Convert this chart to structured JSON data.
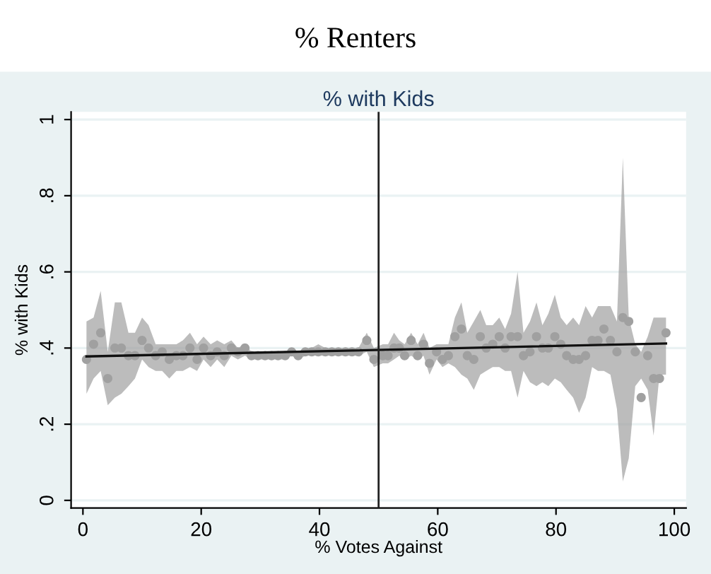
{
  "chart_data": {
    "type": "scatter",
    "title": "% Renters",
    "subtitle": "% with Kids",
    "xlabel": "% Votes Against",
    "ylabel": "% with Kids",
    "xlim": [
      -2,
      102
    ],
    "ylim": [
      -0.02,
      1.02
    ],
    "xticks": [
      0,
      20,
      40,
      60,
      80,
      100
    ],
    "yticks": [
      {
        "value": 0,
        "label": "0"
      },
      {
        "value": 0.2,
        "label": ".2"
      },
      {
        "value": 0.4,
        "label": ".4"
      },
      {
        "value": 0.6,
        "label": ".6"
      },
      {
        "value": 0.8,
        "label": ".8"
      },
      {
        "value": 1,
        "label": "1"
      }
    ],
    "grid": "y",
    "legend": false,
    "ref_lines": [
      {
        "axis": "x",
        "value": 50,
        "color": "#222222"
      }
    ],
    "series": [
      {
        "marker": "circle",
        "color": "#a0a0a0",
        "x": [
          0.6,
          1.8,
          3.0,
          4.2,
          5.4,
          6.5,
          7.7,
          8.8,
          10.0,
          11.1,
          12.3,
          13.4,
          14.6,
          15.8,
          16.9,
          18.1,
          19.3,
          20.4,
          21.6,
          22.7,
          23.9,
          25.1,
          26.2,
          27.4,
          28.5,
          29.6,
          30.8,
          31.9,
          33.0,
          34.2,
          35.3,
          36.4,
          37.6,
          38.7,
          39.8,
          41.0,
          42.1,
          43.2,
          44.4,
          45.5,
          46.6,
          48.0,
          49.2,
          50.7,
          51.6,
          52.6,
          53.5,
          54.4,
          55.5,
          56.6,
          57.6,
          58.6,
          59.8,
          60.8,
          61.8,
          62.9,
          64.0,
          65.0,
          66.1,
          67.2,
          68.2,
          69.3,
          70.4,
          71.4,
          72.4,
          73.5,
          74.5,
          75.6,
          76.7,
          77.7,
          78.7,
          79.8,
          80.8,
          81.8,
          82.9,
          83.9,
          85.0,
          86.1,
          87.1,
          88.1,
          89.2,
          90.3,
          91.3,
          92.3,
          93.4,
          94.4,
          95.5,
          96.5,
          97.5,
          98.6
        ],
        "values": [
          0.37,
          0.41,
          0.44,
          0.32,
          0.4,
          0.4,
          0.38,
          0.38,
          0.42,
          0.4,
          0.38,
          0.39,
          0.37,
          0.38,
          0.38,
          0.4,
          0.37,
          0.4,
          0.38,
          0.39,
          0.38,
          0.4,
          0.39,
          0.4,
          0.38,
          0.38,
          0.38,
          0.38,
          0.38,
          0.38,
          0.39,
          0.38,
          0.39,
          0.39,
          0.39,
          0.39,
          0.39,
          0.39,
          0.39,
          0.39,
          0.39,
          0.42,
          0.37,
          0.38,
          0.38,
          0.4,
          0.4,
          0.38,
          0.42,
          0.38,
          0.41,
          0.36,
          0.39,
          0.37,
          0.38,
          0.43,
          0.45,
          0.38,
          0.37,
          0.43,
          0.4,
          0.41,
          0.43,
          0.4,
          0.43,
          0.43,
          0.38,
          0.39,
          0.43,
          0.4,
          0.4,
          0.43,
          0.41,
          0.38,
          0.37,
          0.37,
          0.38,
          0.42,
          0.42,
          0.45,
          0.42,
          0.39,
          0.48,
          0.47,
          0.39,
          0.27,
          0.38,
          0.32,
          0.32,
          0.44
        ],
        "upper": [
          0.47,
          0.48,
          0.55,
          0.39,
          0.52,
          0.52,
          0.44,
          0.44,
          0.48,
          0.46,
          0.41,
          0.41,
          0.41,
          0.41,
          0.42,
          0.44,
          0.41,
          0.43,
          0.41,
          0.42,
          0.41,
          0.42,
          0.4,
          0.41,
          0.39,
          0.39,
          0.39,
          0.39,
          0.39,
          0.39,
          0.4,
          0.39,
          0.4,
          0.4,
          0.41,
          0.4,
          0.4,
          0.4,
          0.4,
          0.4,
          0.4,
          0.44,
          0.4,
          0.41,
          0.41,
          0.44,
          0.42,
          0.41,
          0.44,
          0.41,
          0.44,
          0.4,
          0.41,
          0.41,
          0.41,
          0.48,
          0.52,
          0.44,
          0.47,
          0.5,
          0.46,
          0.46,
          0.48,
          0.45,
          0.49,
          0.6,
          0.44,
          0.47,
          0.52,
          0.46,
          0.49,
          0.54,
          0.48,
          0.46,
          0.48,
          0.46,
          0.51,
          0.48,
          0.51,
          0.51,
          0.51,
          0.47,
          0.9,
          0.48,
          0.41,
          0.39,
          0.43,
          0.48,
          0.48,
          0.48
        ],
        "lower": [
          0.28,
          0.32,
          0.34,
          0.25,
          0.27,
          0.28,
          0.3,
          0.32,
          0.37,
          0.35,
          0.34,
          0.34,
          0.32,
          0.34,
          0.34,
          0.35,
          0.34,
          0.37,
          0.35,
          0.37,
          0.35,
          0.38,
          0.37,
          0.38,
          0.37,
          0.37,
          0.37,
          0.37,
          0.37,
          0.37,
          0.38,
          0.37,
          0.38,
          0.38,
          0.38,
          0.38,
          0.38,
          0.38,
          0.38,
          0.38,
          0.38,
          0.39,
          0.35,
          0.36,
          0.36,
          0.37,
          0.38,
          0.37,
          0.38,
          0.37,
          0.38,
          0.33,
          0.37,
          0.35,
          0.36,
          0.35,
          0.33,
          0.32,
          0.29,
          0.33,
          0.34,
          0.35,
          0.35,
          0.34,
          0.34,
          0.27,
          0.34,
          0.31,
          0.3,
          0.31,
          0.3,
          0.32,
          0.31,
          0.29,
          0.27,
          0.23,
          0.27,
          0.35,
          0.34,
          0.34,
          0.33,
          0.24,
          0.05,
          0.11,
          0.3,
          0.32,
          0.29,
          0.17,
          0.33,
          0.33
        ]
      },
      {
        "type": "line",
        "color": "#111111",
        "x": [
          0.6,
          98.6
        ],
        "values": [
          0.378,
          0.412
        ]
      }
    ]
  }
}
